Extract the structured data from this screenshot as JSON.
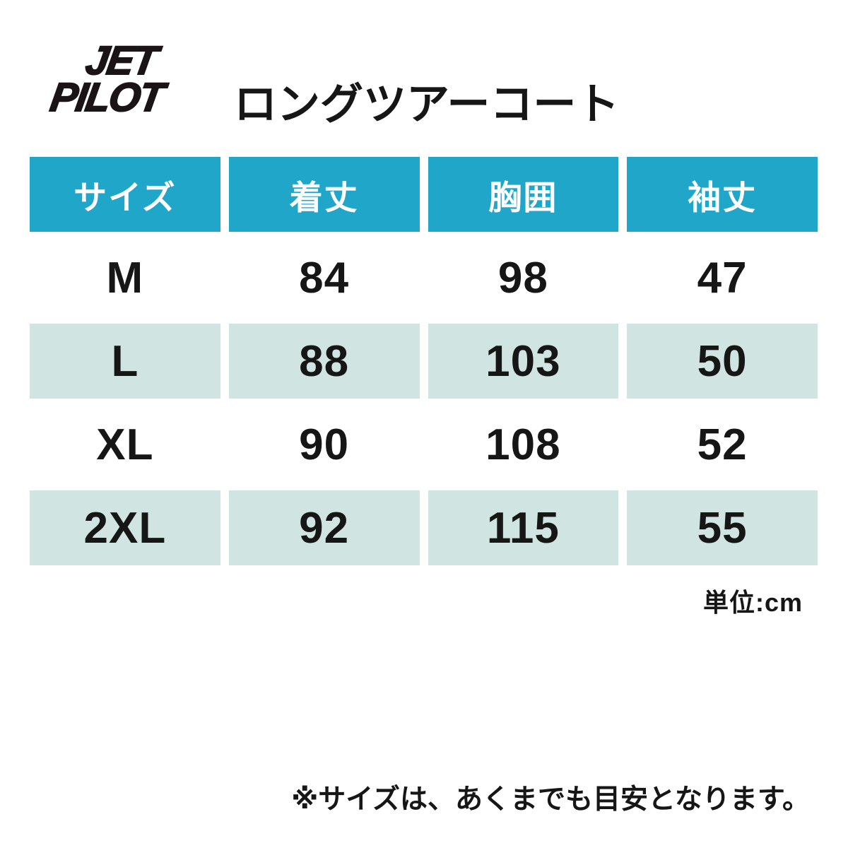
{
  "brand": {
    "logo_line1": "JET",
    "logo_line2": "PILOT"
  },
  "title": "ロングツアーコート",
  "size_table": {
    "columns": [
      "サイズ",
      "着丈",
      "胸囲",
      "袖丈"
    ],
    "rows": [
      {
        "size": "M",
        "values": [
          "84",
          "98",
          "47"
        ]
      },
      {
        "size": "L",
        "values": [
          "88",
          "103",
          "50"
        ]
      },
      {
        "size": "XL",
        "values": [
          "90",
          "108",
          "52"
        ]
      },
      {
        "size": "2XL",
        "values": [
          "92",
          "115",
          "55"
        ]
      }
    ],
    "unit_label": "単位:cm"
  },
  "footnote": "※サイズは、あくまでも目安となります。",
  "colors": {
    "header_bg": "#1fa6c9",
    "header_text": "#ffffff",
    "row_shaded_bg": "#d0e5e1",
    "text": "#161616",
    "background": "#ffffff"
  },
  "chart_data": {
    "type": "table",
    "title": "ロングツアーコート",
    "columns": [
      "サイズ",
      "着丈",
      "胸囲",
      "袖丈"
    ],
    "rows": [
      [
        "M",
        84,
        98,
        47
      ],
      [
        "L",
        88,
        103,
        50
      ],
      [
        "XL",
        90,
        108,
        52
      ],
      [
        "2XL",
        92,
        115,
        55
      ]
    ],
    "unit": "cm"
  }
}
